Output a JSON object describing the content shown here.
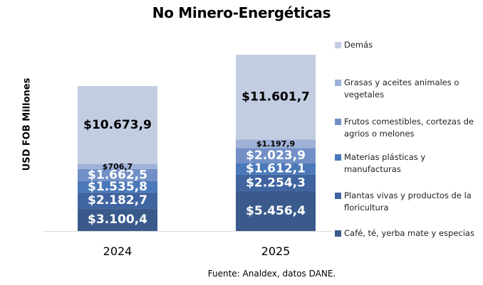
{
  "chart_data": {
    "type": "bar",
    "stacked": true,
    "title": "No Minero-Energéticas",
    "xlabel": "",
    "ylabel": "USD FOB Millones",
    "categories": [
      "2024",
      "2025"
    ],
    "series": [
      {
        "name": "Café, té, yerba mate y especias",
        "color": "#3a5a8c",
        "values": [
          3100.4,
          5456.4
        ],
        "labels": [
          "$3.100,4",
          "$5.456,4"
        ]
      },
      {
        "name": "Plantas vivas y productos de la floricultura",
        "color": "#3f64a0",
        "values": [
          2182.7,
          2254.3
        ],
        "labels": [
          "$2.182,7",
          "$2.254,3"
        ]
      },
      {
        "name": "Materias plásticas y manufacturas",
        "color": "#4a78b8",
        "values": [
          1535.8,
          1612.1
        ],
        "labels": [
          "$1.535,8",
          "$1.612,1"
        ]
      },
      {
        "name": "Frutos comestibles, cortezas de agrios o melones",
        "color": "#7290c6",
        "values": [
          1662.5,
          2023.9
        ],
        "labels": [
          "$1.662,5",
          "$2.023,9"
        ]
      },
      {
        "name": "Grasas y aceites animales o vegetales",
        "color": "#9fb1d6",
        "values": [
          706.7,
          1197.9
        ],
        "labels": [
          "$706,7",
          "$1.197,9"
        ]
      },
      {
        "name": "Demás",
        "color": "#c3cde2",
        "values": [
          10673.9,
          11601.7
        ],
        "labels": [
          "$10.673,9",
          "$11.601,7"
        ]
      }
    ],
    "grid": false,
    "legend_position": "right",
    "source": "Fuente: Analdex, datos DANE."
  }
}
